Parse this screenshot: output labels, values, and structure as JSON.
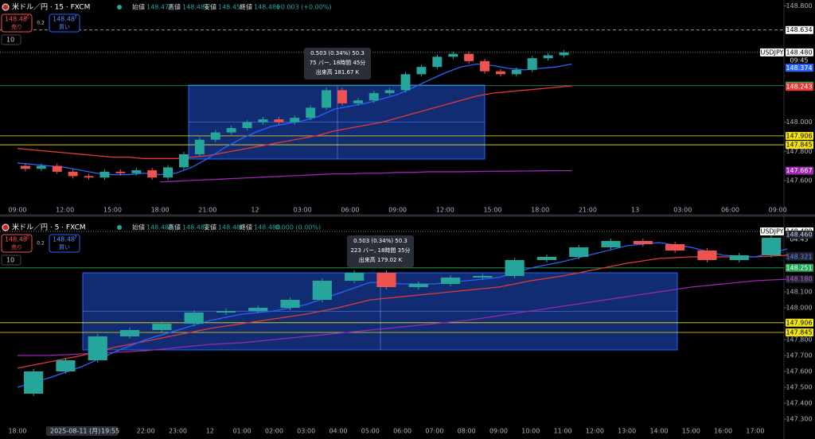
{
  "panels": [
    {
      "symbol": "米ドル／円 · 15 · FXCM",
      "ohlc": [
        {
          "label": "始値",
          "value": "148.477"
        },
        {
          "label": "高値",
          "value": "148.484"
        },
        {
          "label": "安値",
          "value": "148.459"
        },
        {
          "label": "終値",
          "value": "148.480"
        }
      ],
      "change": "+0.003 (+0.00%)",
      "sell": {
        "price": "148.48",
        "sup": "0",
        "label": "売り"
      },
      "spread": "0.2",
      "buy": {
        "price": "148.48",
        "sup": "7",
        "label": "買い"
      },
      "indicator": "10",
      "ylim": [
        147.43,
        148.84
      ],
      "yticks": [
        {
          "value": 148.8,
          "label": "148.800"
        },
        {
          "value": 148.0,
          "label": "148.000"
        },
        {
          "value": 147.8,
          "label": "147.800"
        },
        {
          "value": 147.6,
          "label": "147.600"
        }
      ],
      "xticks": [
        "09:00",
        "12:00",
        "15:00",
        "18:00",
        "21:00",
        "12",
        "03:00",
        "06:00",
        "09:00",
        "12:00",
        "15:00",
        "18:00",
        "21:00",
        "13",
        "03:00",
        "06:00",
        "09:00"
      ],
      "ticker": "USDJPY",
      "countdown": "09:45",
      "price_tags": [
        {
          "value": 148.634,
          "label": "148.634",
          "bg": "#ffffff",
          "fg": "#000",
          "line": "dashed"
        },
        {
          "value": 148.48,
          "label": "148.480",
          "bg": "#ffffff",
          "fg": "#000",
          "line": "dotted"
        },
        {
          "value": 148.374,
          "label": "148.374",
          "bg": "#2962ff",
          "fg": "#fff"
        },
        {
          "value": 148.251,
          "label": "148.251",
          "bg": "#26a65b",
          "fg": "#fff",
          "line": "solid"
        },
        {
          "value": 148.243,
          "label": "148.243",
          "bg": "#e53935",
          "fg": "#fff"
        },
        {
          "value": 147.906,
          "label": "147.906",
          "bg": "#f5e60a",
          "fg": "#000",
          "line": "solid"
        },
        {
          "value": 147.845,
          "label": "147.845",
          "bg": "#f5e60a",
          "fg": "#000",
          "line": "solid"
        },
        {
          "value": 147.667,
          "label": "147.667",
          "bg": "#9c27b0",
          "fg": "#fff"
        }
      ],
      "measure": [
        "0.503 (0.34%) 50.3",
        "75 バー, 18時間 45分",
        "出来高 181.67 K"
      ],
      "close": [
        147.7,
        147.68,
        147.7,
        147.66,
        147.63,
        147.62,
        147.66,
        147.65,
        147.67,
        147.62,
        147.69,
        147.78,
        147.88,
        147.93,
        147.96,
        148.0,
        148.02,
        148.0,
        148.03,
        148.1,
        148.22,
        148.13,
        148.15,
        148.2,
        148.22,
        148.33,
        148.38,
        148.45,
        148.47,
        148.42,
        148.35,
        148.33,
        148.36,
        148.44,
        148.46,
        148.48
      ],
      "ma_fast": [
        147.72,
        147.71,
        147.7,
        147.69,
        147.67,
        147.65,
        147.64,
        147.64,
        147.65,
        147.64,
        147.65,
        147.69,
        147.75,
        147.82,
        147.88,
        147.93,
        147.97,
        147.99,
        148.01,
        148.04,
        148.09,
        148.11,
        148.13,
        148.16,
        148.19,
        148.24,
        148.29,
        148.34,
        148.38,
        148.4,
        148.39,
        148.37,
        148.36,
        148.37,
        148.38,
        148.4
      ],
      "ma_mid": [
        147.82,
        147.81,
        147.8,
        147.79,
        147.78,
        147.77,
        147.76,
        147.76,
        147.75,
        147.75,
        147.75,
        147.76,
        147.77,
        147.79,
        147.81,
        147.83,
        147.85,
        147.87,
        147.89,
        147.91,
        147.94,
        147.96,
        147.98,
        148.0,
        148.03,
        148.06,
        148.09,
        148.12,
        148.15,
        148.18,
        148.2,
        148.21,
        148.22,
        148.23,
        148.24,
        148.25
      ],
      "ma_slow": [
        null,
        null,
        null,
        null,
        null,
        null,
        null,
        null,
        null,
        147.59,
        147.595,
        147.6,
        147.605,
        147.61,
        147.615,
        147.62,
        147.625,
        147.63,
        147.635,
        147.64,
        147.645,
        147.645,
        147.65,
        147.65,
        147.655,
        147.655,
        147.66,
        147.66,
        147.66,
        147.662,
        147.663,
        147.664,
        147.665,
        147.666,
        147.667,
        147.667
      ]
    },
    {
      "symbol": "米ドル／円 · 5 · FXCM",
      "ohlc": [
        {
          "label": "始値",
          "value": "148.480"
        },
        {
          "label": "高値",
          "value": "148.482"
        },
        {
          "label": "安値",
          "value": "148.480"
        },
        {
          "label": "終値",
          "value": "148.480"
        }
      ],
      "change": "0.000 (0.00%)",
      "sell": {
        "price": "148.48",
        "sup": "0",
        "label": "売り"
      },
      "spread": "0.2",
      "buy": {
        "price": "148.48",
        "sup": "7",
        "label": "買い"
      },
      "indicator": "10",
      "ylim": [
        147.26,
        148.575
      ],
      "yticks": [
        {
          "value": 148.1,
          "label": "148.100"
        },
        {
          "value": 148.0,
          "label": "148.000"
        },
        {
          "value": 147.8,
          "label": "147.800"
        },
        {
          "value": 147.7,
          "label": "147.700"
        },
        {
          "value": 147.6,
          "label": "147.600"
        },
        {
          "value": 147.5,
          "label": "147.500"
        },
        {
          "value": 147.4,
          "label": "147.400"
        },
        {
          "value": 147.3,
          "label": "147.300"
        }
      ],
      "xticks": [
        "18:00",
        "22:00",
        "23:00",
        "12",
        "01:00",
        "02:00",
        "03:00",
        "04:00",
        "05:00",
        "06:00",
        "07:00",
        "08:00",
        "09:00",
        "10:00",
        "11:00",
        "12:00",
        "13:00",
        "14:00",
        "15:00",
        "16:00",
        "17:00"
      ],
      "date": "2025-08-11 (月)",
      "time": "19:55",
      "ticker": "USDJPY",
      "countdown": "04:45",
      "price_tags": [
        {
          "value": 148.48,
          "label": "148.480",
          "bg": "#ffffff",
          "fg": "#000",
          "line": "dotted"
        },
        {
          "value": 148.46,
          "label": "148.460",
          "bg": "#1e222d",
          "fg": "#d1d4dc"
        },
        {
          "value": 148.326,
          "label": "148.326",
          "bg": "#1e222d",
          "fg": "#e53935"
        },
        {
          "value": 148.321,
          "label": "148.321",
          "bg": "#1e222d",
          "fg": "#5b8cff"
        },
        {
          "value": 148.251,
          "label": "148.251",
          "bg": "#26a65b",
          "fg": "#fff",
          "line": "solid"
        },
        {
          "value": 148.18,
          "label": "148.180",
          "bg": "#1e222d",
          "fg": "#c45ad6"
        },
        {
          "value": 147.906,
          "label": "147.906",
          "bg": "#f5e60a",
          "fg": "#000",
          "line": "solid"
        },
        {
          "value": 147.845,
          "label": "147.845",
          "bg": "#f5e60a",
          "fg": "#000",
          "line": "solid"
        }
      ],
      "measure": [
        "0.503 (0.34%) 50.3",
        "223 バー, 18時間 35分",
        "出来高 179.02 K"
      ],
      "close": [
        147.46,
        147.6,
        147.67,
        147.82,
        147.86,
        147.9,
        147.97,
        147.98,
        148.0,
        148.05,
        148.17,
        148.22,
        148.13,
        148.15,
        148.19,
        148.2,
        148.3,
        148.32,
        148.38,
        148.42,
        148.4,
        148.36,
        148.3,
        148.33,
        148.44
      ],
      "ma_fast": [
        147.5,
        147.56,
        147.63,
        147.72,
        147.8,
        147.86,
        147.92,
        147.96,
        147.98,
        148.02,
        148.09,
        148.16,
        148.15,
        148.15,
        148.17,
        148.19,
        148.25,
        148.29,
        148.34,
        148.39,
        148.41,
        148.38,
        148.33,
        148.32,
        148.37
      ],
      "ma_mid": [
        147.62,
        147.66,
        147.7,
        147.75,
        147.79,
        147.83,
        147.87,
        147.9,
        147.93,
        147.96,
        148.0,
        148.05,
        148.07,
        148.09,
        148.11,
        148.13,
        148.17,
        148.2,
        148.24,
        148.28,
        148.31,
        148.32,
        148.32,
        148.32,
        148.33
      ],
      "ma_slow": [
        147.7,
        147.7,
        147.71,
        147.72,
        147.73,
        147.75,
        147.77,
        147.78,
        147.8,
        147.82,
        147.84,
        147.86,
        147.88,
        147.9,
        147.92,
        147.95,
        147.98,
        148.01,
        148.04,
        148.07,
        148.1,
        148.13,
        148.15,
        148.17,
        148.18
      ]
    }
  ]
}
